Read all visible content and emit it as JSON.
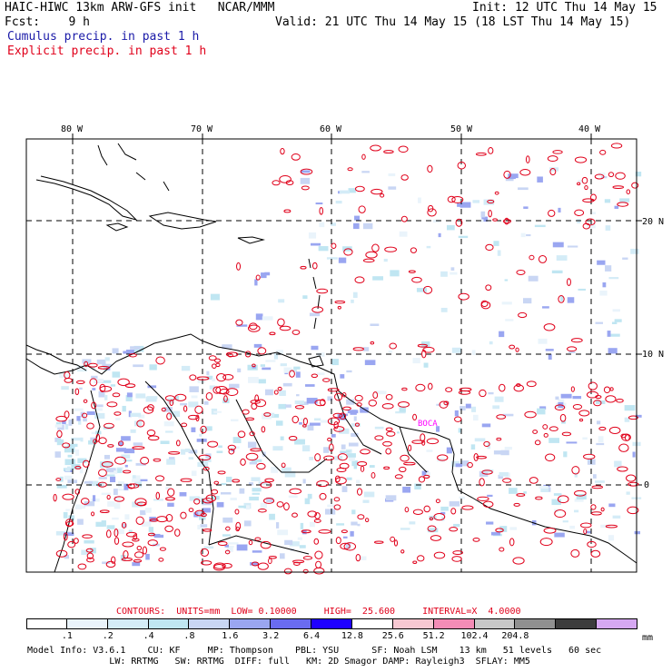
{
  "header": {
    "model": "HAIC-HIWC 13km ARW-GFS init   NCAR/MMM",
    "fcst": "Fcst:    9 h",
    "init": "Init: 12 UTC Thu 14 May 15",
    "valid": "Valid: 21 UTC Thu 14 May 15 (18 LST Thu 14 May 15)",
    "cumulus": "Cumulus precip. in past 1 h",
    "explicit": "Explicit precip. in past 1 h"
  },
  "map": {
    "lon_labels": [
      "80 W",
      "70 W",
      "60 W",
      "50 W",
      "40 W"
    ],
    "lat_labels": [
      "20 N",
      "10 N",
      "0"
    ],
    "station_labels": [
      "BOCA"
    ],
    "colors": {
      "cumulus": "#1a1aa8",
      "explicit": "#e0001a",
      "coast": "#000000",
      "grid": "#000000",
      "station": "#ff00ff"
    }
  },
  "contours": {
    "text": "CONTOURS:  UNITS=mm  LOW= 0.10000     HIGH=  25.600     INTERVAL=X  4.0000"
  },
  "colorbar": {
    "colors": [
      "#ffffff",
      "#eaf4fb",
      "#d4ecf7",
      "#c0e6f2",
      "#c9d6f4",
      "#9aa6f1",
      "#6a6cf0",
      "#1f00ff",
      "#ffffff",
      "#f7c8d2",
      "#f48cb6",
      "#c8c8c8",
      "#909090",
      "#3c3c3c",
      "#d6a8f2"
    ],
    "ticks": [
      ".1",
      ".2",
      ".4",
      ".8",
      "1.6",
      "3.2",
      "6.4",
      "12.8",
      "25.6",
      "51.2",
      "102.4",
      "204.8"
    ],
    "unit": "mm"
  },
  "footer": {
    "line1": "Model Info: V3.6.1    CU: KF     MP: Thompson    PBL: YSU      SF: Noah LSM    13 km   51 levels   60 sec",
    "line2": "               LW: RRTMG   SW: RRTMG  DIFF: full   KM: 2D Smagor DAMP: Rayleigh3  SFLAY: MM5"
  }
}
